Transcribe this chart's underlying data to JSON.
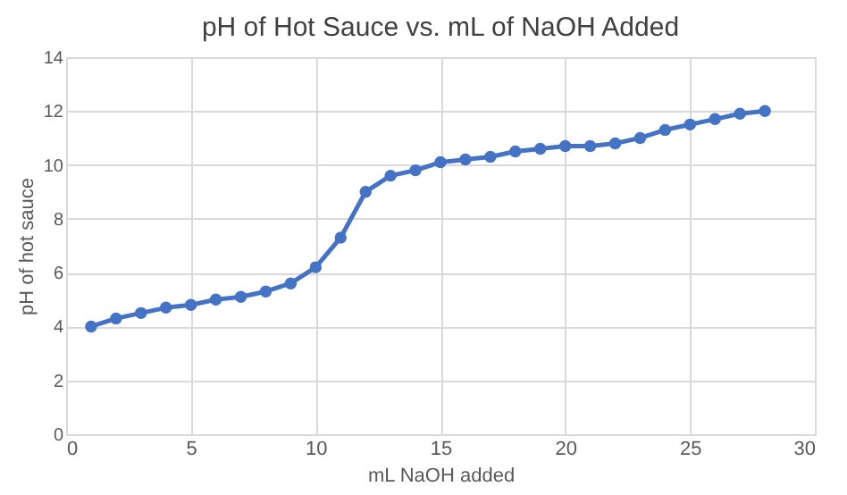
{
  "chart_data": {
    "type": "line",
    "title": "pH of Hot Sauce vs. mL of NaOH Added",
    "xlabel": "mL NaOH added",
    "ylabel": "pH of hot sauce",
    "x": [
      1,
      2,
      3,
      4,
      5,
      6,
      7,
      8,
      9,
      10,
      11,
      12,
      13,
      14,
      15,
      16,
      17,
      18,
      19,
      20,
      21,
      22,
      23,
      24,
      25,
      26,
      27,
      28
    ],
    "series": [
      {
        "color": "#4472c4",
        "values": [
          4.0,
          4.3,
          4.5,
          4.7,
          4.8,
          5.0,
          5.1,
          5.3,
          5.6,
          6.2,
          7.3,
          9.0,
          9.6,
          9.8,
          10.1,
          10.2,
          10.3,
          10.5,
          10.6,
          10.7,
          10.7,
          10.8,
          11.0,
          11.3,
          11.5,
          11.7,
          11.9,
          12.0
        ]
      }
    ],
    "xlim": [
      0,
      30
    ],
    "xticks": [
      0,
      5,
      10,
      15,
      20,
      25,
      30
    ],
    "ylim": [
      0,
      14
    ],
    "yticks": [
      0,
      2,
      4,
      6,
      8,
      10,
      12,
      14
    ],
    "grid": true,
    "marker": "circle",
    "line_style": "solid"
  }
}
